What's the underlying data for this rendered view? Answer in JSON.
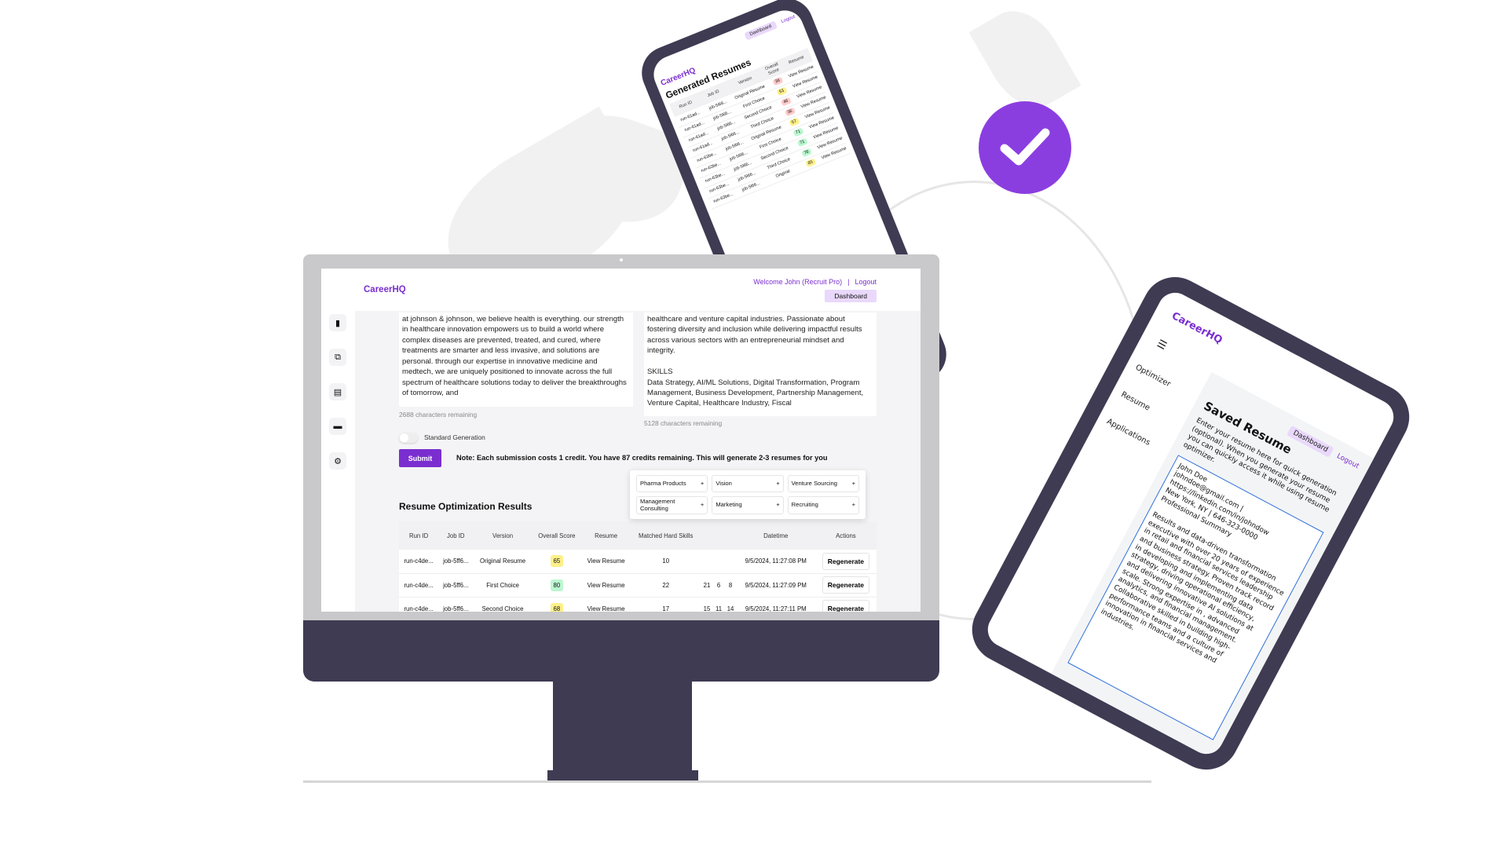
{
  "colors": {
    "brand": "#7a2ed0",
    "dashboard_pill": "#e9d8fb",
    "frame": "#3e3b52",
    "check_badge": "#8b3ee0",
    "score_yellow": "#fdf08a",
    "score_green": "#bbf7d0",
    "score_red": "#fecaca",
    "tablet_textarea_border": "#2e6fd8"
  },
  "check_badge": {
    "icon": "checkmark-icon"
  },
  "phone": {
    "dashboard": "Dashboard",
    "logout": "Logout",
    "logo": "CareerHQ",
    "title": "Generated Resumes",
    "columns": [
      "Run ID",
      "Job ID",
      "Version",
      "Overall Score",
      "Resume"
    ],
    "rows": [
      {
        "run": "run-61ad...",
        "job": "job-5l66...",
        "version": "Original Resume",
        "score": "36",
        "level": "red",
        "resume": "View Resume"
      },
      {
        "run": "run-61ad...",
        "job": "job-5l66...",
        "version": "First Choice",
        "score": "53",
        "level": "yellow",
        "resume": "View Resume"
      },
      {
        "run": "run-61ad...",
        "job": "job-5l66...",
        "version": "Second Choice",
        "score": "46",
        "level": "red",
        "resume": "View Resume"
      },
      {
        "run": "run-61ad...",
        "job": "job-5l66...",
        "version": "Third Choice",
        "score": "36",
        "level": "red",
        "resume": "View Resume"
      },
      {
        "run": "run-63be...",
        "job": "job-5l66...",
        "version": "Original Resume",
        "score": "57",
        "level": "yellow",
        "resume": "View Resume"
      },
      {
        "run": "run-63be...",
        "job": "job-5l66...",
        "version": "First Choice",
        "score": "71",
        "level": "green",
        "resume": "View Resume"
      },
      {
        "run": "run-63be...",
        "job": "job-5l66...",
        "version": "Second Choice",
        "score": "71",
        "level": "green",
        "resume": "View Resume"
      },
      {
        "run": "run-63be...",
        "job": "job-5l66...",
        "version": "Third Choice",
        "score": "78",
        "level": "green",
        "resume": "View Resume"
      },
      {
        "run": "run-63be...",
        "job": "job-5l66...",
        "version": "Original",
        "score": "85",
        "level": "yellow",
        "resume": "View Resume"
      }
    ]
  },
  "tablet": {
    "logo": "CareerHQ",
    "menu_icon": "hamburger-icon",
    "nav": [
      "Optimizer",
      "Resume",
      "Applications"
    ],
    "title": "Saved Resume",
    "dashboard": "Dashboard",
    "logout": "Logout",
    "description": "Enter your resume here for quick generation (optional). When you generate your resume you can quickly access it while using resume optimizer.",
    "resume_text": "John Doe\njohndoe@gmail.com | https://linkedin.com/in/johndow\nNew York, NY | 646-323-0000\nProfessional Summary\n\nResults and data-driven transformation executive with over 20 years of experience in retail and financial services leadership and business strategy. Proven track record in developing and implementing data strategy, driving operational efficiency, and delivering innovative AI solutions at scale. Strong expertise in , advanced analytics, and financial management. Collaborative skilled in building high-performance teams and a culture of innovation in financial services and industries."
  },
  "desktop": {
    "logo": "CareerHQ",
    "welcome": "Welcome John (Recruit Pro)",
    "separator": "|",
    "logout": "Logout",
    "dashboard": "Dashboard",
    "sidebar_icons": [
      "document-icon",
      "copy-documents-icon",
      "saved-resume-icon",
      "wallet-icon",
      "gear-icon"
    ],
    "job_description_text": "at johnson & johnson, we believe health is everything. our strength in healthcare innovation empowers us to build a world where complex diseases are prevented, treated, and cured, where treatments are smarter and less invasive, and solutions are personal. through our expertise in innovative medicine and medtech, we are uniquely positioned to innovate across the full spectrum of healthcare solutions today to deliver the breakthroughs of tomorrow, and",
    "job_description_remaining": "2688 characters remaining",
    "resume_text": "healthcare and venture capital industries. Passionate about fostering diversity and inclusion while delivering impactful results across various sectors with an entrepreneurial mindset and integrity.\n\nSKILLS\nData Strategy, AI/ML Solutions, Digital Transformation, Program Management, Business Development, Partnership Management, Venture Capital, Healthcare Industry, Fiscal",
    "resume_remaining": "5128 characters remaining",
    "toggle_label": "Standard Generation",
    "toggle_on": false,
    "submit": "Submit",
    "note": "Note: Each submission costs 1 credit. You have 87 credits remaining. This will generate 2-3 resumes for you",
    "results_title": "Resume Optimization Results",
    "columns": [
      "Run ID",
      "Job ID",
      "Version",
      "Overall Score",
      "Resume",
      "Matched Hard Skills",
      "",
      "",
      "",
      "Datetime",
      "Actions"
    ],
    "rows": [
      {
        "cells": [
          "run-c4de...",
          "job-5ff6...",
          "Original Resume",
          "65",
          "View Resume",
          "10",
          "",
          "",
          "",
          "9/5/2024, 11:27:08 PM"
        ],
        "level": "yellow",
        "action": "Regenerate"
      },
      {
        "cells": [
          "run-c4de...",
          "job-5ff6...",
          "First Choice",
          "80",
          "View Resume",
          "22",
          "21",
          "6",
          "8",
          "9/5/2024, 11:27:09 PM"
        ],
        "level": "green",
        "action": "Regenerate"
      },
      {
        "cells": [
          "run-c4de...",
          "job-5ff6...",
          "Second Choice",
          "68",
          "View Resume",
          "17",
          "15",
          "11",
          "14",
          "9/5/2024, 11:27:11 PM"
        ],
        "level": "yellow",
        "action": "Regenerate"
      }
    ],
    "popup_chips": [
      "Pharma Products",
      "Vision",
      "Venture Sourcing",
      "Management Consulting",
      "Marketing",
      "Recruiting"
    ],
    "chip_add": "+"
  }
}
